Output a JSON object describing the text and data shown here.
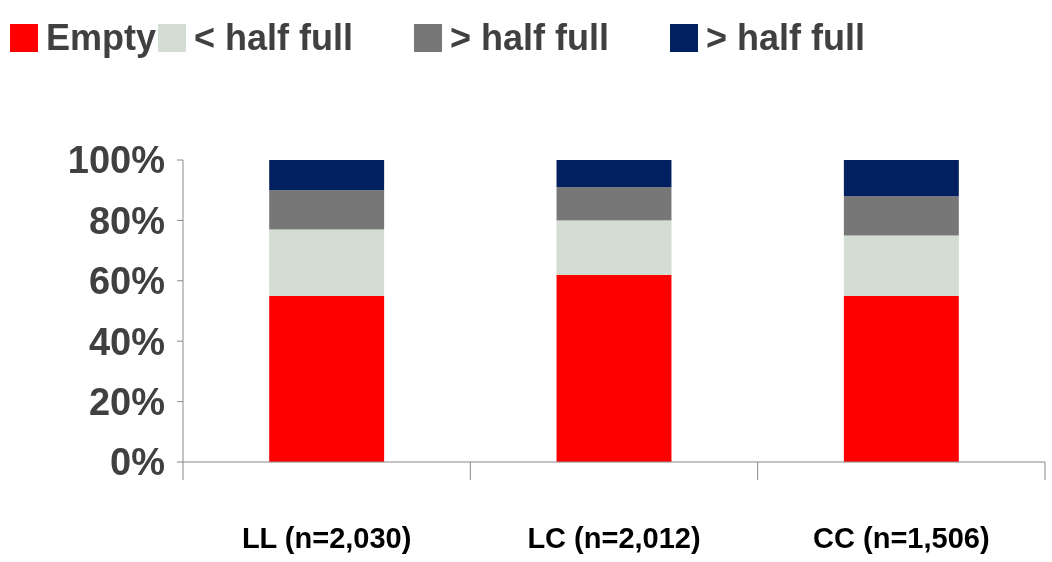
{
  "chart_data": {
    "type": "bar",
    "stacked": true,
    "categories": [
      "LL (n=2,030)",
      "LC (n=2,012)",
      "CC (n=1,506)"
    ],
    "series": [
      {
        "name": "Empty",
        "color": "#ff0000",
        "values": [
          55,
          62,
          55
        ]
      },
      {
        "name": "< half full",
        "color": "#d3ddd3",
        "values": [
          22,
          18,
          20
        ]
      },
      {
        "name": "> half full",
        "color": "#777777",
        "values": [
          13,
          11,
          13
        ]
      },
      {
        "name": "> half full",
        "color": "#002060",
        "values": [
          10,
          9,
          12
        ]
      }
    ],
    "ylim": [
      0,
      100
    ],
    "yticks": [
      {
        "value": 0,
        "label": "0%"
      },
      {
        "value": 20,
        "label": "20%"
      },
      {
        "value": 40,
        "label": "40%"
      },
      {
        "value": 60,
        "label": "60%"
      },
      {
        "value": 80,
        "label": "80%"
      },
      {
        "value": 100,
        "label": "100%"
      }
    ],
    "legend": "top",
    "grid": false
  }
}
